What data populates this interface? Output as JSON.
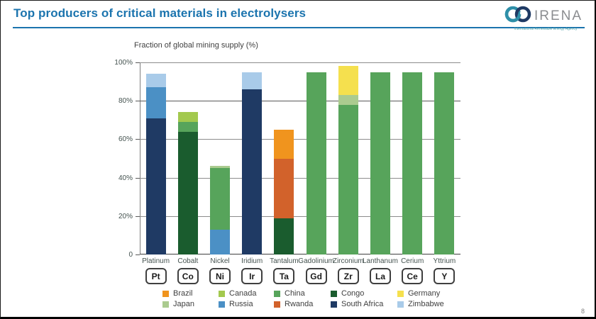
{
  "header": {
    "title": "Top producers of critical materials in electrolysers",
    "logo": {
      "name": "IRENA",
      "subtitle": "International Renewable Energy Agency"
    }
  },
  "page_number": "8",
  "chart_data": {
    "type": "bar",
    "subtype": "stacked-vertical",
    "axis_title": "Fraction of global mining supply (%)",
    "ylim": [
      0,
      100
    ],
    "grid": "horizontal",
    "y_ticks": [
      {
        "label": "100%",
        "value": 100
      },
      {
        "label": "80%",
        "value": 80
      },
      {
        "label": "60%",
        "value": 60
      },
      {
        "label": "40%",
        "value": 40
      },
      {
        "label": "20%",
        "value": 20
      },
      {
        "label": "0",
        "value": 0
      }
    ],
    "categories": [
      "Platinum",
      "Cobalt",
      "Nickel",
      "Iridium",
      "Tantalum",
      "Gadolinium",
      "Zirconium",
      "Lanthanum",
      "Cerium",
      "Yttrium"
    ],
    "symbols": [
      "Pt",
      "Co",
      "Ni",
      "Ir",
      "Ta",
      "Gd",
      "Zr",
      "La",
      "Ce",
      "Y"
    ],
    "bars": [
      {
        "material": "Platinum",
        "symbol": "Pt",
        "segments": [
          {
            "country": "South Africa",
            "value": 71
          },
          {
            "country": "Russia",
            "value": 16
          },
          {
            "country": "Zimbabwe",
            "value": 7
          }
        ]
      },
      {
        "material": "Cobalt",
        "symbol": "Co",
        "segments": [
          {
            "country": "Congo",
            "value": 64
          },
          {
            "country": "China",
            "value": 5
          },
          {
            "country": "Canada",
            "value": 5
          }
        ]
      },
      {
        "material": "Nickel",
        "symbol": "Ni",
        "segments": [
          {
            "country": "Russia",
            "value": 13
          },
          {
            "country": "China",
            "value": 32
          },
          {
            "country": "Japan",
            "value": 1
          }
        ]
      },
      {
        "material": "Iridium",
        "symbol": "Ir",
        "segments": [
          {
            "country": "South Africa",
            "value": 86
          },
          {
            "country": "Zimbabwe",
            "value": 9
          }
        ]
      },
      {
        "material": "Tantalum",
        "symbol": "Ta",
        "segments": [
          {
            "country": "Congo",
            "value": 19
          },
          {
            "country": "Rwanda",
            "value": 31
          },
          {
            "country": "Brazil",
            "value": 15
          }
        ]
      },
      {
        "material": "Gadolinium",
        "symbol": "Gd",
        "segments": [
          {
            "country": "China",
            "value": 95
          }
        ]
      },
      {
        "material": "Zirconium",
        "symbol": "Zr",
        "segments": [
          {
            "country": "China",
            "value": 78
          },
          {
            "country": "Japan",
            "value": 5
          },
          {
            "country": "Germany",
            "value": 15
          }
        ]
      },
      {
        "material": "Lanthanum",
        "symbol": "La",
        "segments": [
          {
            "country": "China",
            "value": 95
          }
        ]
      },
      {
        "material": "Cerium",
        "symbol": "Ce",
        "segments": [
          {
            "country": "China",
            "value": 95
          }
        ]
      },
      {
        "material": "Yttrium",
        "symbol": "Y",
        "segments": [
          {
            "country": "China",
            "value": 95
          }
        ]
      }
    ],
    "legend": [
      "Brazil",
      "Canada",
      "China",
      "Congo",
      "Germany",
      "Japan",
      "Russia",
      "Rwanda",
      "South Africa",
      "Zimbabwe"
    ],
    "legend_position": "bottom",
    "colors": {
      "Brazil": "#F0941E",
      "Canada": "#A3C94E",
      "China": "#57A45B",
      "Congo": "#1A5C2E",
      "Germany": "#F5E04E",
      "Japan": "#ABCB8F",
      "Russia": "#4B90C5",
      "Rwanda": "#D2622B",
      "South Africa": "#1F3A64",
      "Zimbabwe": "#A9CBE9"
    },
    "accent_color": "#1B74AE"
  }
}
